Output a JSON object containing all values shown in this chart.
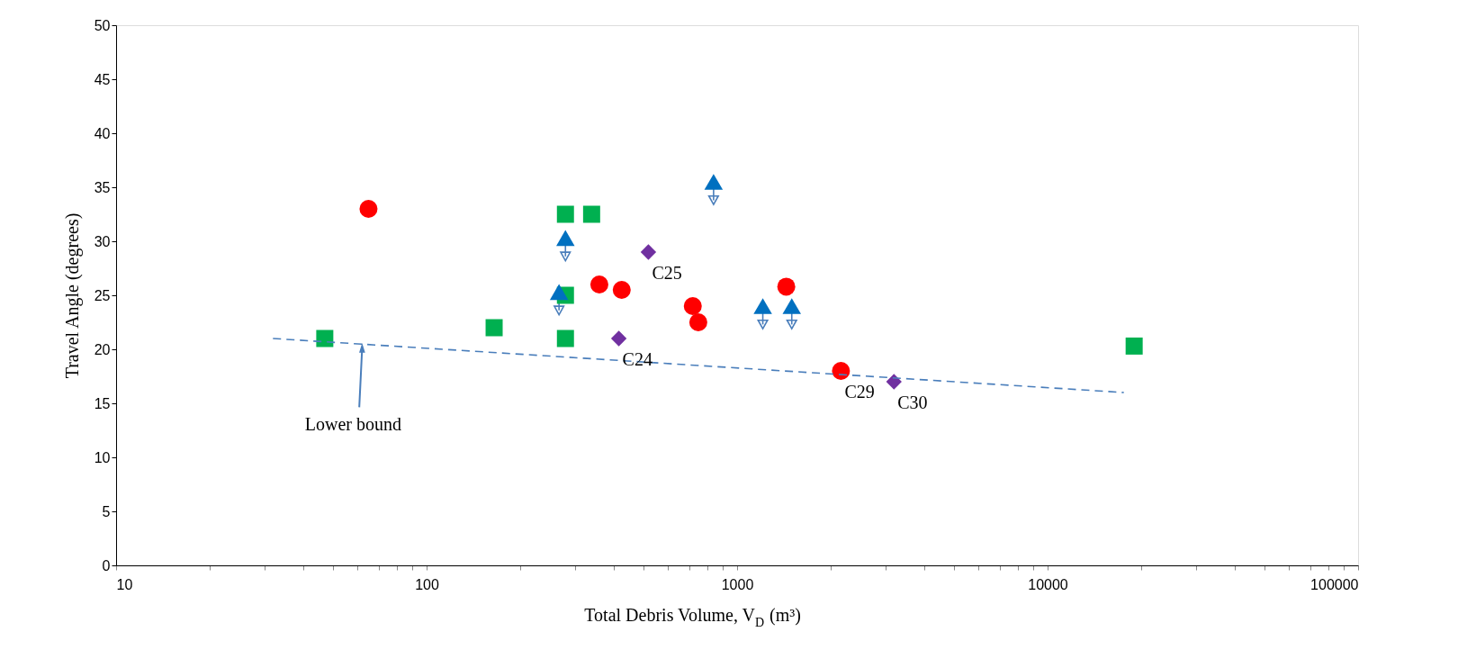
{
  "chart_data": {
    "type": "scatter",
    "xlabel": "Total Debris Volume, V$_{D}$ (m³)",
    "ylabel": "Travel Angle (degrees)",
    "log": "x",
    "grid": false,
    "xlim": [
      10,
      100000
    ],
    "ylim": [
      0,
      50
    ],
    "xticks": [
      10,
      {
        "value": 20,
        "label": null
      },
      {
        "value": 30,
        "label": null
      },
      {
        "value": 40,
        "label": null
      },
      {
        "value": 50,
        "label": null
      },
      {
        "value": 60,
        "label": null
      },
      {
        "value": 70,
        "label": null
      },
      {
        "value": 80,
        "label": null
      },
      {
        "value": 90,
        "label": null
      },
      100,
      {
        "value": 200,
        "label": null
      },
      {
        "value": 300,
        "label": null
      },
      {
        "value": 400,
        "label": null
      },
      {
        "value": 500,
        "label": null
      },
      {
        "value": 600,
        "label": null
      },
      {
        "value": 700,
        "label": null
      },
      {
        "value": 800,
        "label": null
      },
      {
        "value": 900,
        "label": null
      },
      1000,
      {
        "value": 2000,
        "label": null
      },
      {
        "value": 3000,
        "label": null
      },
      {
        "value": 4000,
        "label": null
      },
      {
        "value": 5000,
        "label": null
      },
      {
        "value": 6000,
        "label": null
      },
      {
        "value": 7000,
        "label": null
      },
      {
        "value": 8000,
        "label": null
      },
      {
        "value": 9000,
        "label": null
      },
      10000,
      {
        "value": 20000,
        "label": null
      },
      {
        "value": 30000,
        "label": null
      },
      {
        "value": 40000,
        "label": null
      },
      {
        "value": 50000,
        "label": null
      },
      {
        "value": 60000,
        "label": null
      },
      {
        "value": 70000,
        "label": null
      },
      {
        "value": 80000,
        "label": null
      },
      {
        "value": 90000,
        "label": null
      },
      100000
    ],
    "yticks": [
      0,
      5,
      10,
      15,
      20,
      25,
      30,
      35,
      40,
      45,
      50
    ],
    "series": [
      {
        "color": "#ff0000",
        "marker": "circle",
        "x": [
          65,
          360,
          425,
          720,
          750,
          1440,
          2160
        ],
        "values": [
          33,
          26,
          25.5,
          24,
          22.5,
          25.8,
          18
        ]
      },
      {
        "color": "#00b050",
        "marker": "square",
        "x": [
          47,
          165,
          280,
          340,
          280,
          280,
          19000
        ],
        "values": [
          21,
          22,
          32.5,
          32.5,
          25,
          21,
          20.3
        ]
      },
      {
        "color": "#0070c0",
        "marker": "triangle",
        "x": [
          267,
          280,
          840,
          1210,
          1500
        ],
        "values": [
          25.3,
          30.3,
          35.5,
          24,
          24
        ],
        "errors": [
          [
            23.6,
            25.3
          ],
          [
            28.6,
            30.3
          ],
          [
            33.8,
            35.5
          ],
          [
            22.3,
            24
          ],
          [
            22.3,
            24
          ]
        ]
      },
      {
        "color": "#7030a0",
        "marker": "diamond",
        "x": [
          416,
          518,
          3200
        ],
        "values": [
          21,
          29,
          17
        ]
      },
      {
        "type": "line",
        "color": "#4a7ebb",
        "marker": "none",
        "line_style": "dashed",
        "x": [
          32,
          17600
        ],
        "values": [
          21,
          16
        ]
      }
    ],
    "annotations": [
      {
        "text": "C24",
        "x": 416,
        "y": 21
      },
      {
        "text": "C25",
        "x": 518,
        "y": 29
      },
      {
        "text": "C29",
        "x": 2160,
        "y": 18
      },
      {
        "text": "C30",
        "x": 3200,
        "y": 17
      },
      {
        "text": "Lower bound",
        "x": 62,
        "y": 20.3
      }
    ]
  }
}
